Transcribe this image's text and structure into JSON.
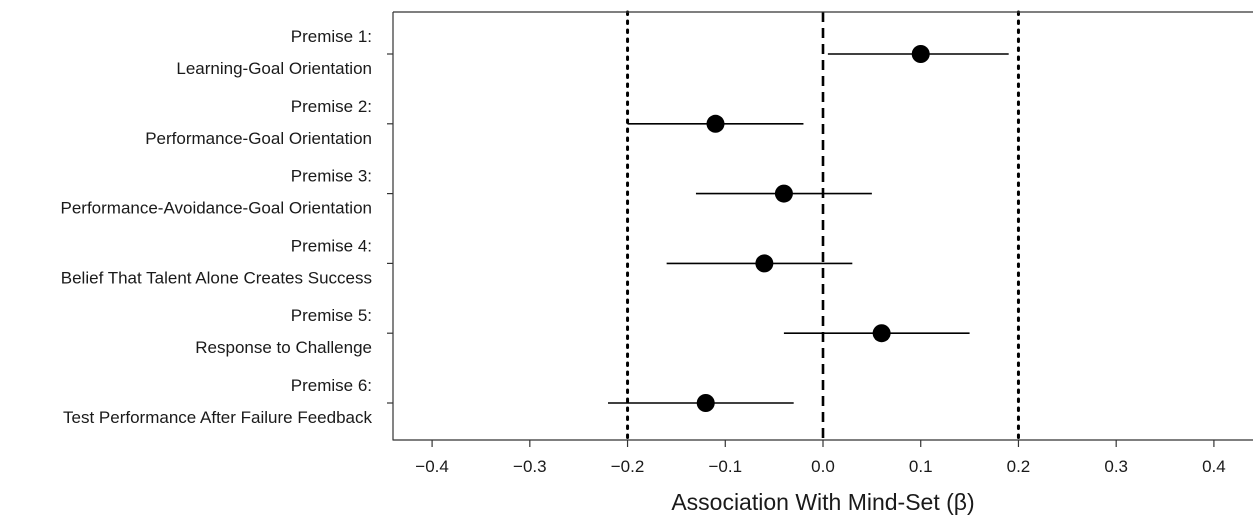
{
  "chart_data": {
    "type": "forest",
    "title": "",
    "xlabel": "Association With Mind-Set (β)",
    "ylabel": "",
    "xlim": [
      -0.44,
      0.44
    ],
    "xticks": [
      -0.4,
      -0.3,
      -0.2,
      -0.1,
      0.0,
      0.1,
      0.2,
      0.3,
      0.4
    ],
    "xtick_labels": [
      "−0.4",
      "−0.3",
      "−0.2",
      "−0.1",
      "0.0",
      "0.1",
      "0.2",
      "0.3",
      "0.4"
    ],
    "reference_lines": [
      {
        "x": 0.0,
        "style": "dashed"
      },
      {
        "x": -0.2,
        "style": "dotted"
      },
      {
        "x": 0.2,
        "style": "dotted"
      }
    ],
    "grid": false,
    "point_color": "#000000",
    "categories": [
      {
        "line1": "Premise 1:",
        "line2": "Learning-Goal Orientation",
        "estimate": 0.1,
        "lower": 0.005,
        "upper": 0.19
      },
      {
        "line1": "Premise 2:",
        "line2": "Performance-Goal Orientation",
        "estimate": -0.11,
        "lower": -0.2,
        "upper": -0.02
      },
      {
        "line1": "Premise 3:",
        "line2": "Performance-Avoidance-Goal Orientation",
        "estimate": -0.04,
        "lower": -0.13,
        "upper": 0.05
      },
      {
        "line1": "Premise 4:",
        "line2": "Belief That Talent Alone Creates Success",
        "estimate": -0.06,
        "lower": -0.16,
        "upper": 0.03
      },
      {
        "line1": "Premise 5:",
        "line2": "Response to Challenge",
        "estimate": 0.06,
        "lower": -0.04,
        "upper": 0.15
      },
      {
        "line1": "Premise 6:",
        "line2": "Test Performance After Failure Feedback",
        "estimate": -0.12,
        "lower": -0.22,
        "upper": -0.03
      }
    ]
  }
}
